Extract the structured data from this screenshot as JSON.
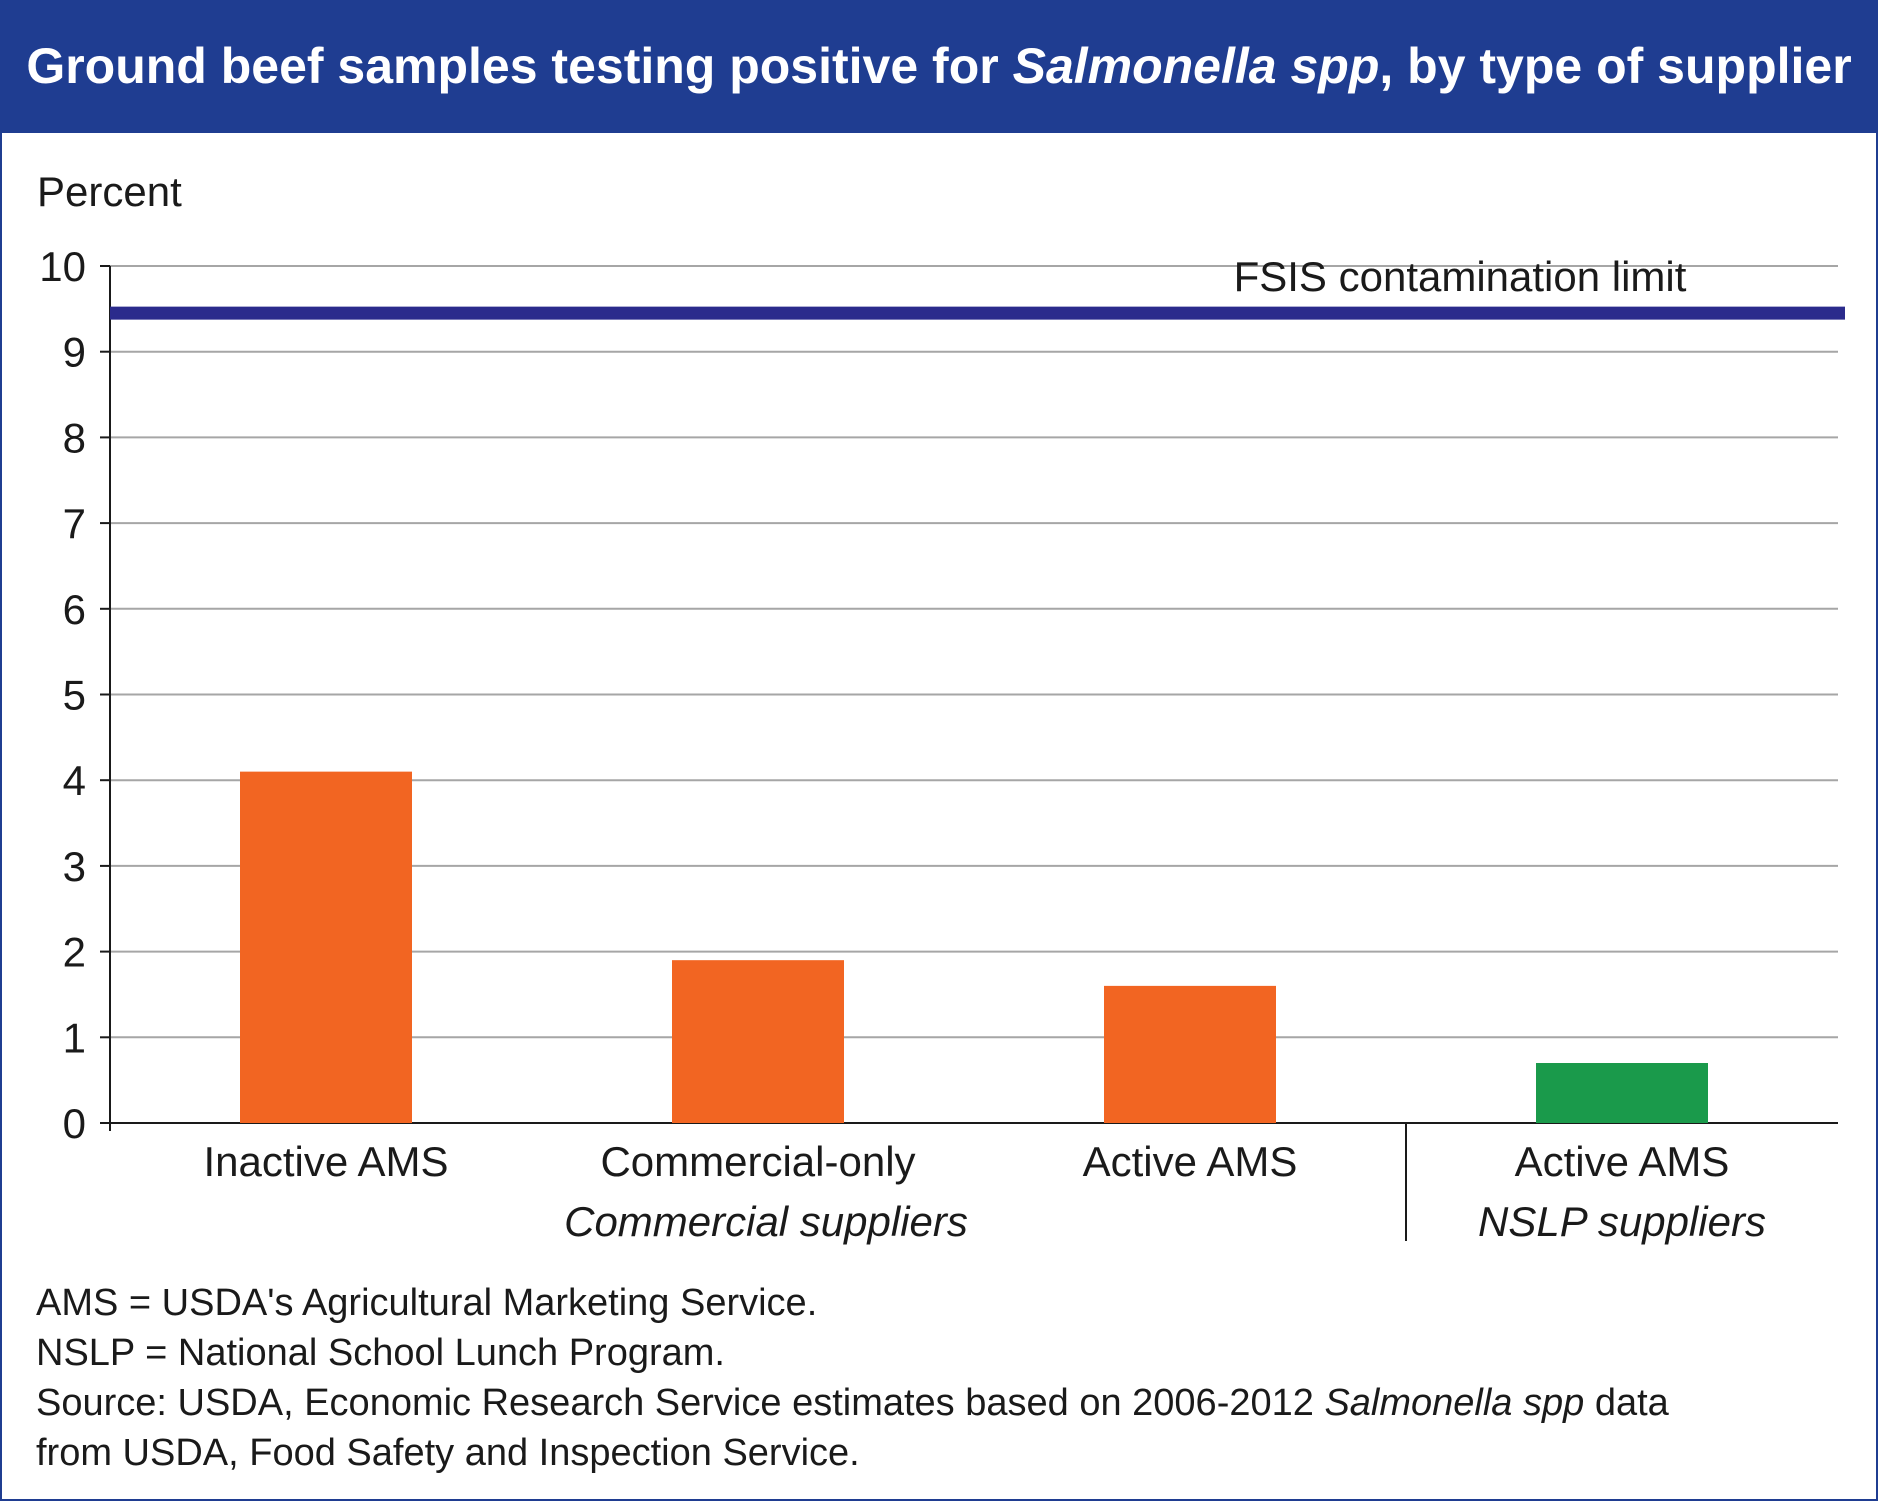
{
  "title": {
    "text_before": "Ground beef samples testing positive for ",
    "italic": "Salmonella spp",
    "text_after": ", by type of supplier"
  },
  "chart_data": {
    "type": "bar",
    "ylabel": "Percent",
    "ylim": [
      0,
      10
    ],
    "yticks": [
      "0",
      "1",
      "2",
      "3",
      "4",
      "5",
      "6",
      "7",
      "8",
      "9",
      "10"
    ],
    "grid": true,
    "categories": [
      "Inactive AMS",
      "Commercial-only",
      "Active AMS",
      "Active AMS"
    ],
    "values": [
      4.1,
      1.9,
      1.6,
      0.7
    ],
    "groups": [
      {
        "label": "Commercial suppliers",
        "categories": [
          "Inactive AMS",
          "Commercial-only",
          "Active AMS"
        ]
      },
      {
        "label": "NSLP suppliers",
        "categories": [
          "Active AMS"
        ]
      }
    ],
    "bar_colors": [
      "#f26522",
      "#f26522",
      "#f26522",
      "#1a9a4b"
    ],
    "reference_line": {
      "label": "FSIS contamination limit",
      "value": 9.45,
      "color": "#2b2b8c"
    },
    "gridline_color": "#a6a6a6"
  },
  "notes": {
    "line1": "AMS = USDA's Agricultural Marketing Service.",
    "line2": "NSLP = National School Lunch Program.",
    "line3_before": "Source: USDA, Economic Research Service estimates based on 2006-2012 ",
    "line3_italic": "Salmonella spp",
    "line3_after": " data",
    "line4": "from USDA, Food Safety and Inspection Service."
  }
}
